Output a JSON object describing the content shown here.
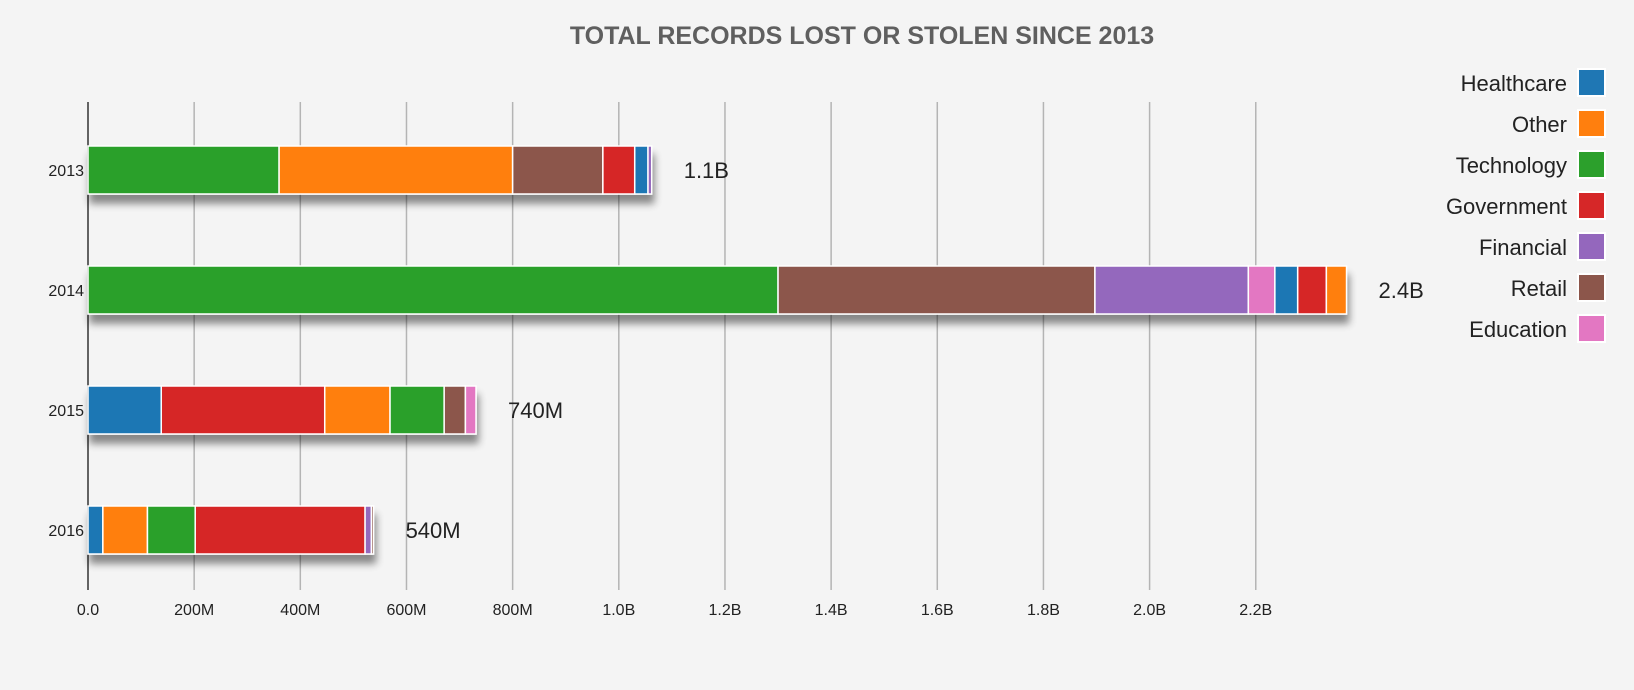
{
  "chart_data": {
    "type": "bar",
    "orientation": "horizontal",
    "stacked": true,
    "title": "TOTAL RECORDS LOST OR STOLEN SINCE 2013",
    "xlabel": "",
    "ylabel": "",
    "xlim": [
      0,
      2370000000
    ],
    "x_ticks": [
      0,
      200000000,
      400000000,
      600000000,
      800000000,
      1000000000,
      1200000000,
      1400000000,
      1600000000,
      1800000000,
      2000000000,
      2200000000
    ],
    "x_tick_labels": [
      "0.0",
      "200M",
      "400M",
      "600M",
      "800M",
      "1.0B",
      "1.2B",
      "1.4B",
      "1.6B",
      "1.8B",
      "2.0B",
      "2.2B"
    ],
    "grid": true,
    "legend_position": "top-right",
    "legend": [
      "Healthcare",
      "Other",
      "Technology",
      "Government",
      "Financial",
      "Retail",
      "Education"
    ],
    "categories": [
      "2013",
      "2014",
      "2015",
      "2016"
    ],
    "totals": [
      "1.1B",
      "2.4B",
      "740M",
      "540M"
    ],
    "colors": {
      "Healthcare": "#1f77b4",
      "Other": "#ff7f0e",
      "Technology": "#2ca02c",
      "Government": "#d62728",
      "Financial": "#9467bd",
      "Retail": "#8c564b",
      "Education": "#e377c2"
    },
    "bars": [
      {
        "category": "2013",
        "segments": [
          {
            "series": "Technology",
            "value": 360000000
          },
          {
            "series": "Other",
            "value": 440000000
          },
          {
            "series": "Retail",
            "value": 170000000
          },
          {
            "series": "Government",
            "value": 60000000
          },
          {
            "series": "Healthcare",
            "value": 25000000
          },
          {
            "series": "Financial",
            "value": 7000000
          }
        ]
      },
      {
        "category": "2014",
        "segments": [
          {
            "series": "Technology",
            "value": 1300000000
          },
          {
            "series": "Retail",
            "value": 597000000
          },
          {
            "series": "Financial",
            "value": 289000000
          },
          {
            "series": "Education",
            "value": 50000000
          },
          {
            "series": "Healthcare",
            "value": 43000000
          },
          {
            "series": "Government",
            "value": 54000000
          },
          {
            "series": "Other",
            "value": 38000000
          }
        ]
      },
      {
        "category": "2015",
        "segments": [
          {
            "series": "Healthcare",
            "value": 138000000
          },
          {
            "series": "Government",
            "value": 308000000
          },
          {
            "series": "Other",
            "value": 123000000
          },
          {
            "series": "Technology",
            "value": 102000000
          },
          {
            "series": "Retail",
            "value": 40000000
          },
          {
            "series": "Education",
            "value": 20000000
          }
        ]
      },
      {
        "category": "2016",
        "segments": [
          {
            "series": "Healthcare",
            "value": 28000000
          },
          {
            "series": "Other",
            "value": 84000000
          },
          {
            "series": "Technology",
            "value": 90000000
          },
          {
            "series": "Government",
            "value": 320000000
          },
          {
            "series": "Financial",
            "value": 12000000
          },
          {
            "series": "Retail",
            "value": 4000000
          }
        ]
      }
    ]
  }
}
